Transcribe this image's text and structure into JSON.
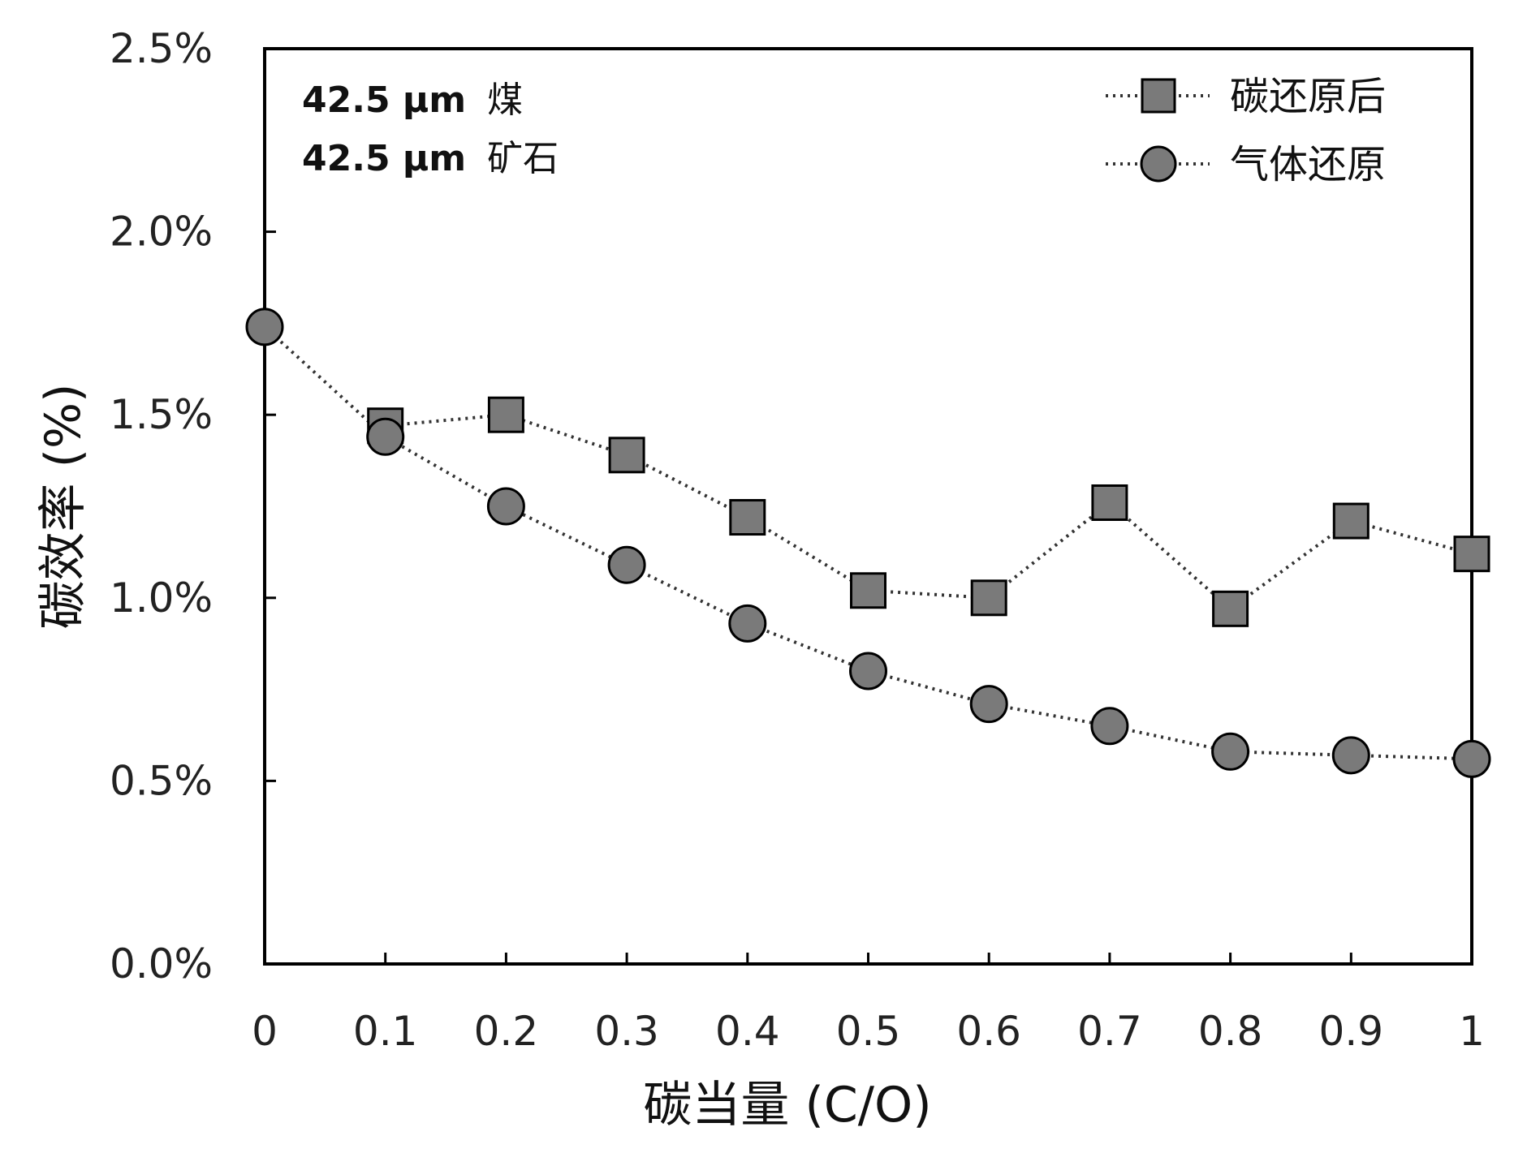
{
  "chart_data": {
    "type": "line",
    "xlabel": "碳当量 (C/O)",
    "ylabel": "碳效率 (%)",
    "xlim": [
      0,
      1
    ],
    "ylim": [
      0,
      2.5
    ],
    "x_ticks": [
      "0",
      "0.1",
      "0.2",
      "0.3",
      "0.4",
      "0.5",
      "0.6",
      "0.7",
      "0.8",
      "0.9",
      "1"
    ],
    "y_ticks": [
      "0.0%",
      "0.5%",
      "1.0%",
      "1.5%",
      "2.0%",
      "2.5%"
    ],
    "grid": false,
    "legend_position": "top-right",
    "annotations": [
      {
        "bold": "42.5 μm",
        "text": "煤"
      },
      {
        "bold": "42.5 μm",
        "text": "矿石"
      }
    ],
    "series": [
      {
        "name": "碳还原后",
        "marker": "square",
        "line_style": "dotted",
        "x": [
          0.1,
          0.2,
          0.3,
          0.4,
          0.5,
          0.6,
          0.7,
          0.8,
          0.9,
          1.0
        ],
        "values": [
          1.47,
          1.5,
          1.39,
          1.22,
          1.02,
          1.0,
          1.26,
          0.97,
          1.21,
          1.12
        ]
      },
      {
        "name": "气体还原",
        "marker": "circle",
        "line_style": "dotted",
        "x": [
          0,
          0.1,
          0.2,
          0.3,
          0.4,
          0.5,
          0.6,
          0.7,
          0.8,
          0.9,
          1.0
        ],
        "values": [
          1.74,
          1.44,
          1.25,
          1.09,
          0.93,
          0.8,
          0.71,
          0.65,
          0.58,
          0.57,
          0.56
        ]
      }
    ],
    "colors": {
      "marker_fill": "#7a7a7a",
      "marker_stroke": "#000000",
      "line": "#333333",
      "axis": "#000000"
    }
  }
}
